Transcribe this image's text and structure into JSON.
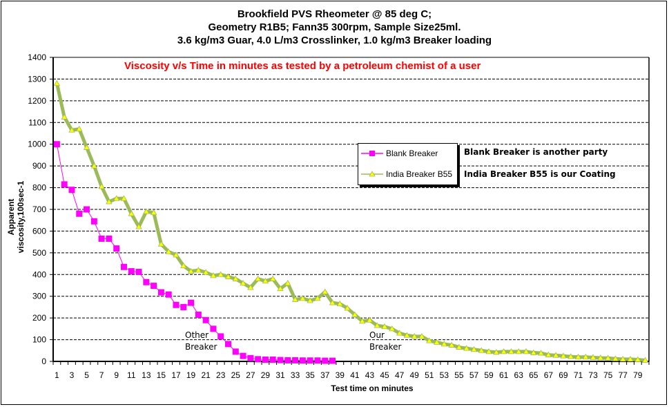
{
  "chart_data": {
    "type": "line",
    "title_lines": [
      "Brookfield PVS Rheometer @ 85 deg C;",
      "Geometry R1B5; Fann35 300rpm, Sample Size25ml.",
      "3.6 kg/m3 Guar, 4.0 L/m3 Crosslinker, 1.0 kg/m3 Breaker loading"
    ],
    "subtitle": "Viscosity v/s Time in minutes as tested by a petroleum chemist of a user",
    "xlabel": "Test time on minutes",
    "ylabel": "Apparent viscosity,100sec-1",
    "ylim": [
      0,
      1400
    ],
    "yticks": [
      0,
      100,
      200,
      300,
      400,
      500,
      600,
      700,
      800,
      900,
      1000,
      1100,
      1200,
      1300,
      1400
    ],
    "x_categories_count": 80,
    "x_tick_labels_every": 2,
    "grid": "horizontal-dashed",
    "legend_position": "center-right",
    "series": [
      {
        "name": "Blank Breaker",
        "color": "#ff00ff",
        "marker": "square",
        "x": [
          1,
          2,
          3,
          4,
          5,
          6,
          7,
          8,
          9,
          10,
          11,
          12,
          13,
          14,
          15,
          16,
          17,
          18,
          19,
          20,
          21,
          22,
          23,
          24,
          25,
          26,
          27,
          28,
          29,
          30,
          31,
          32,
          33,
          34,
          35,
          36,
          37,
          38
        ],
        "values": [
          1000,
          815,
          790,
          680,
          700,
          645,
          565,
          565,
          520,
          435,
          415,
          412,
          365,
          348,
          318,
          308,
          260,
          250,
          270,
          215,
          190,
          150,
          115,
          80,
          45,
          25,
          15,
          10,
          8,
          8,
          6,
          5,
          5,
          4,
          4,
          4,
          3,
          3
        ]
      },
      {
        "name": "India Breaker B55",
        "color": "#9bbb59",
        "marker_color": "#ffff00",
        "marker": "triangle",
        "x": [
          1,
          2,
          3,
          4,
          5,
          6,
          7,
          8,
          9,
          10,
          11,
          12,
          13,
          14,
          15,
          16,
          17,
          18,
          19,
          20,
          21,
          22,
          23,
          24,
          25,
          26,
          27,
          28,
          29,
          30,
          31,
          32,
          33,
          34,
          35,
          36,
          37,
          38,
          39,
          40,
          41,
          42,
          43,
          44,
          45,
          46,
          47,
          48,
          49,
          50,
          51,
          52,
          53,
          54,
          55,
          56,
          57,
          58,
          59,
          60,
          61,
          62,
          63,
          64,
          65,
          66,
          67,
          68,
          69,
          70,
          71,
          72,
          73,
          74,
          75,
          76,
          77,
          78,
          79,
          80
        ],
        "values": [
          1280,
          1125,
          1065,
          1070,
          985,
          900,
          805,
          735,
          750,
          750,
          680,
          620,
          690,
          685,
          540,
          505,
          490,
          440,
          415,
          420,
          410,
          395,
          400,
          390,
          380,
          360,
          340,
          380,
          370,
          380,
          335,
          360,
          285,
          290,
          280,
          290,
          320,
          270,
          265,
          245,
          215,
          185,
          190,
          165,
          160,
          150,
          130,
          120,
          115,
          115,
          95,
          88,
          80,
          75,
          65,
          60,
          55,
          50,
          45,
          42,
          45,
          45,
          45,
          45,
          40,
          38,
          30,
          28,
          25,
          22,
          20,
          20,
          18,
          16,
          15,
          12,
          10,
          10,
          8,
          5
        ]
      }
    ],
    "annotations": [
      {
        "text_lines": [
          "Other",
          "Breaker"
        ],
        "near_x": 20
      },
      {
        "text_lines": [
          "Our",
          "Breaker"
        ],
        "near_x": 44
      }
    ],
    "notes": [
      "Blank Breaker is another party",
      "India Breaker B55 is our Coating"
    ]
  }
}
